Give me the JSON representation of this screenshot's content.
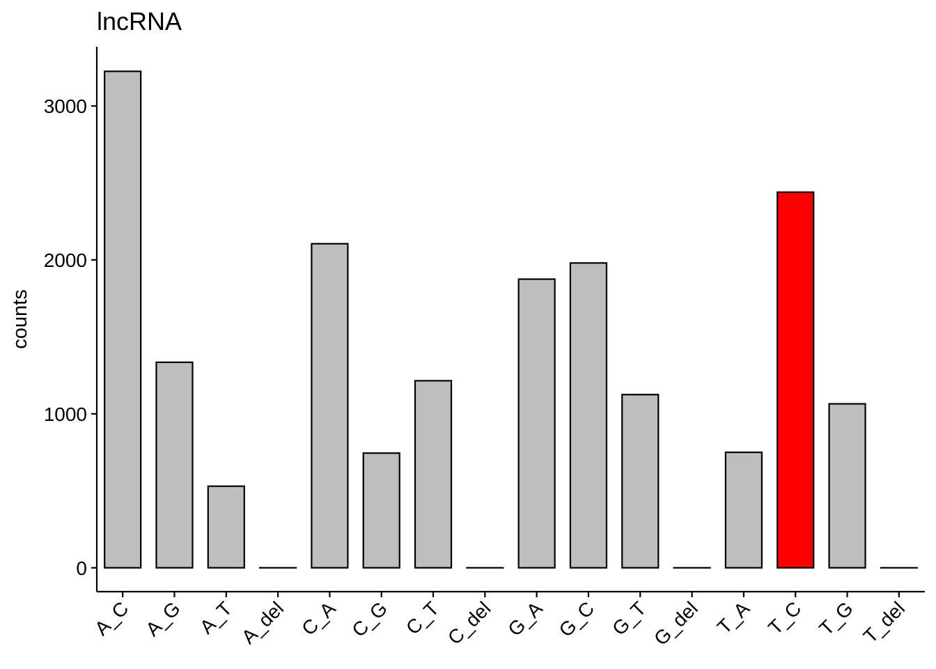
{
  "chart_data": {
    "type": "bar",
    "title": "lncRNA",
    "xlabel": "",
    "ylabel": "counts",
    "categories": [
      "A_C",
      "A_G",
      "A_T",
      "A_del",
      "C_A",
      "C_G",
      "C_T",
      "C_del",
      "G_A",
      "G_C",
      "G_T",
      "G_del",
      "T_A",
      "T_C",
      "T_G",
      "T_del"
    ],
    "values": [
      3225,
      1335,
      530,
      0,
      2105,
      745,
      1215,
      0,
      1875,
      1980,
      1125,
      0,
      750,
      2440,
      1065,
      0
    ],
    "highlight_category": "T_C",
    "yticks": [
      0,
      1000,
      2000,
      3000
    ],
    "ylim": [
      -155,
      3385
    ],
    "grid": false,
    "legend": "none",
    "colors": {
      "bar_fill": "#bebebe",
      "highlight_fill": "#ff0000",
      "bar_stroke": "#000000",
      "axis": "#000000"
    }
  }
}
